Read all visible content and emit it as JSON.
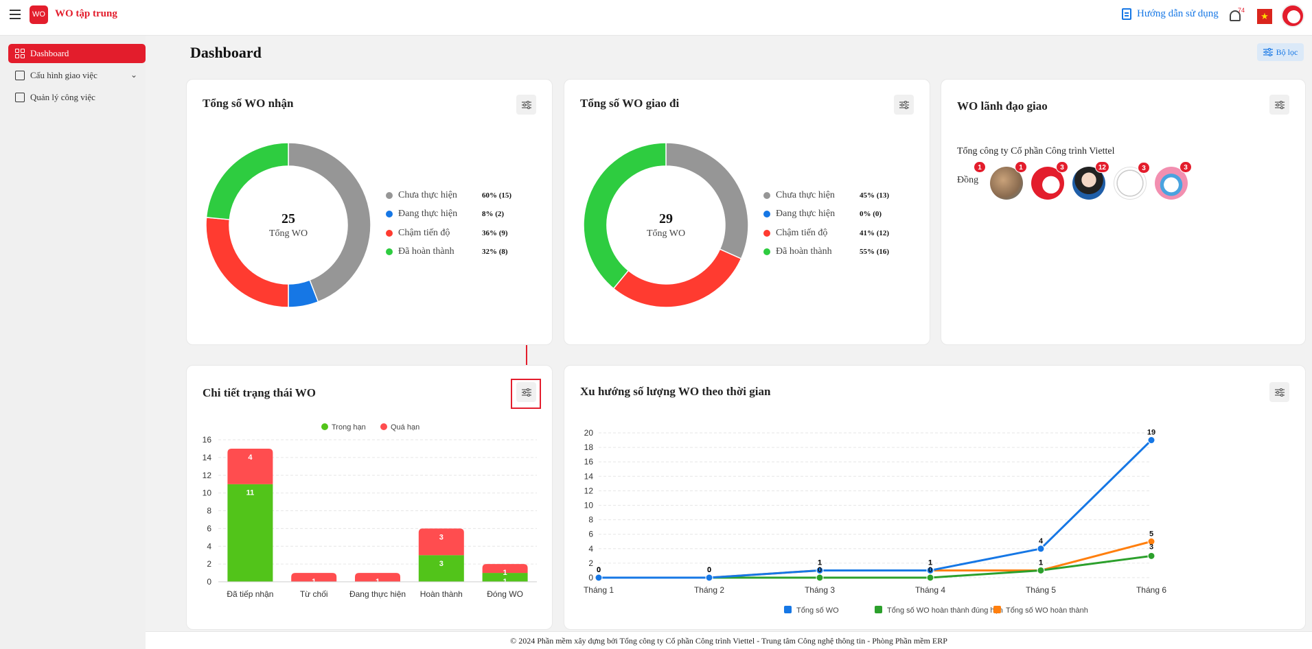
{
  "header": {
    "app_title": "WO tập trung",
    "logo_text": "WO",
    "guide_label": "Hướng dẫn sử dụng",
    "notification_count": "74",
    "flag_symbol": "★"
  },
  "sidebar": {
    "items": [
      {
        "label": "Dashboard",
        "active": true
      },
      {
        "label": "Cấu hình giao việc"
      },
      {
        "label": "Quản lý công việc"
      }
    ]
  },
  "page": {
    "title": "Dashboard",
    "filter_label": "Bộ lọc"
  },
  "received": {
    "title": "Tổng số WO nhận",
    "total": "25",
    "total_label": "Tổng WO",
    "legend": [
      {
        "name": "Chưa thực hiện",
        "value": "60% (15)",
        "color": "#969696"
      },
      {
        "name": "Đang thực hiện",
        "value": "8% (2)",
        "color": "#1677e5"
      },
      {
        "name": "Chậm tiến độ",
        "value": "36% (9)",
        "color": "#ff3b30"
      },
      {
        "name": "Đã hoàn thành",
        "value": "32% (8)",
        "color": "#2ecc40"
      }
    ]
  },
  "sent": {
    "title": "Tổng số WO giao đi",
    "total": "29",
    "total_label": "Tổng WO",
    "legend": [
      {
        "name": "Chưa thực hiện",
        "value": "45% (13)",
        "color": "#969696"
      },
      {
        "name": "Đang thực hiện",
        "value": "0% (0)",
        "color": "#1677e5"
      },
      {
        "name": "Chậm tiến độ",
        "value": "41% (12)",
        "color": "#ff3b30"
      },
      {
        "name": "Đã hoàn thành",
        "value": "55% (16)",
        "color": "#2ecc40"
      }
    ]
  },
  "leader": {
    "title": "WO lãnh đạo giao",
    "org": "Tổng công ty Cổ phần Công trình Viettel",
    "avatars": [
      {
        "alt": "Đồng",
        "badge": "1"
      },
      {
        "badge": "1"
      },
      {
        "badge": "3"
      },
      {
        "badge": "12"
      },
      {
        "badge": "3"
      },
      {
        "badge": "3"
      }
    ]
  },
  "status_chart": {
    "title": "Chi tiết trạng thái WO",
    "chart_data": {
      "type": "bar",
      "stacked": true,
      "categories": [
        "Đã tiếp nhận",
        "Từ chối",
        "Đang thực hiện",
        "Hoàn thành",
        "Đóng WO"
      ],
      "series": [
        {
          "name": "Trong hạn",
          "color": "#52c41a",
          "values": [
            11,
            0,
            0,
            3,
            1
          ]
        },
        {
          "name": "Quá hạn",
          "color": "#ff4d4f",
          "values": [
            4,
            1,
            1,
            3,
            1
          ]
        }
      ],
      "ylim": [
        0,
        16
      ],
      "yticks": [
        0,
        2,
        4,
        6,
        8,
        10,
        12,
        14,
        16
      ],
      "grid": true,
      "legend": "top"
    }
  },
  "trend_chart": {
    "title": "Xu hướng số lượng WO theo thời gian",
    "chart_data": {
      "type": "line",
      "x": [
        "Tháng 1",
        "Tháng 2",
        "Tháng 3",
        "Tháng 4",
        "Tháng 5",
        "Tháng 6"
      ],
      "series": [
        {
          "name": "Tổng số WO",
          "color": "#1677e5",
          "values": [
            0,
            0,
            1,
            1,
            4,
            19
          ]
        },
        {
          "name": "Tổng số WO hoàn thành đúng hạn",
          "color": "#2ca02c",
          "values": [
            0,
            0,
            0,
            0,
            1,
            3
          ]
        },
        {
          "name": "Tổng số WO hoàn thành",
          "color": "#ff7f0e",
          "values": [
            0,
            0,
            1,
            1,
            1,
            5
          ]
        }
      ],
      "ylim": [
        0,
        20
      ],
      "yticks": [
        0,
        2,
        4,
        6,
        8,
        10,
        12,
        14,
        16,
        18,
        20
      ],
      "grid": true,
      "legend": "bottom"
    }
  },
  "footer": "© 2024 Phần mềm xây dựng bởi Tổng công ty Cổ phần Công trình Viettel - Trung tâm Công nghệ thông tin - Phòng Phần mềm ERP"
}
